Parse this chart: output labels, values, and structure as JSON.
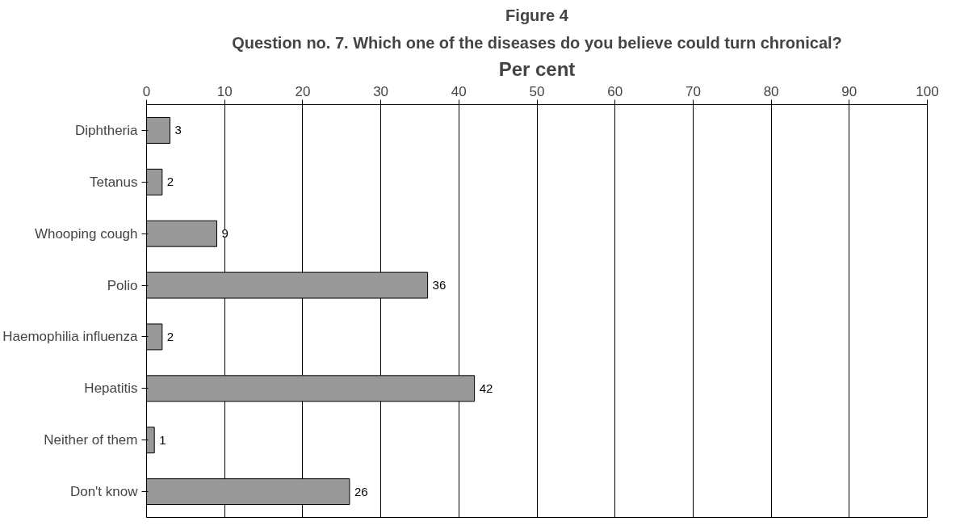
{
  "chart_data": {
    "type": "bar",
    "orientation": "horizontal",
    "title": "Figure 4",
    "subtitle": "Question no. 7. Which one of the diseases do you believe could turn chronical?",
    "xlabel": "Per cent",
    "categories": [
      "Diphtheria",
      "Tetanus",
      "Whooping cough",
      "Polio",
      "Haemophilia influenza",
      "Hepatitis",
      "Neither of them",
      "Don't know"
    ],
    "values": [
      3,
      2,
      9,
      36,
      2,
      42,
      1,
      26
    ],
    "color": "#999999",
    "xlim": [
      0,
      100
    ],
    "xticks": [
      0,
      10,
      20,
      30,
      40,
      50,
      60,
      70,
      80,
      90,
      100
    ],
    "grid": "x",
    "data_labels": true
  }
}
